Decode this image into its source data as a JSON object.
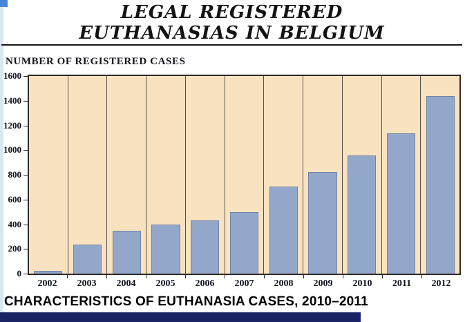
{
  "header": {
    "title_line1": "LEGAL REGISTERED",
    "title_line2": "EUTHANASIAS IN BELGIUM"
  },
  "chart_data": {
    "type": "bar",
    "title": "LEGAL REGISTERED EUTHANASIAS IN BELGIUM",
    "ylabel": "NUMBER OF REGISTERED CASES",
    "xlabel": "",
    "categories": [
      "2002",
      "2003",
      "2004",
      "2005",
      "2006",
      "2007",
      "2008",
      "2009",
      "2010",
      "2011",
      "2012"
    ],
    "values": [
      24,
      235,
      349,
      395,
      430,
      500,
      705,
      825,
      955,
      1135,
      1435
    ],
    "ylim": [
      0,
      1600
    ],
    "ytick_step": 200,
    "yticks": [
      0,
      200,
      400,
      600,
      800,
      1000,
      1200,
      1400,
      1600
    ],
    "grid": "vertical-column-separators",
    "legend": "none",
    "colors": {
      "bar": "#93a7cb",
      "bar_border": "#7084a8",
      "plot_background": "#f8e2c0",
      "band": "#1b2466"
    }
  },
  "footer": {
    "caption": "CHARACTERISTICS OF EUTHANASIA CASES, 2010–2011"
  }
}
